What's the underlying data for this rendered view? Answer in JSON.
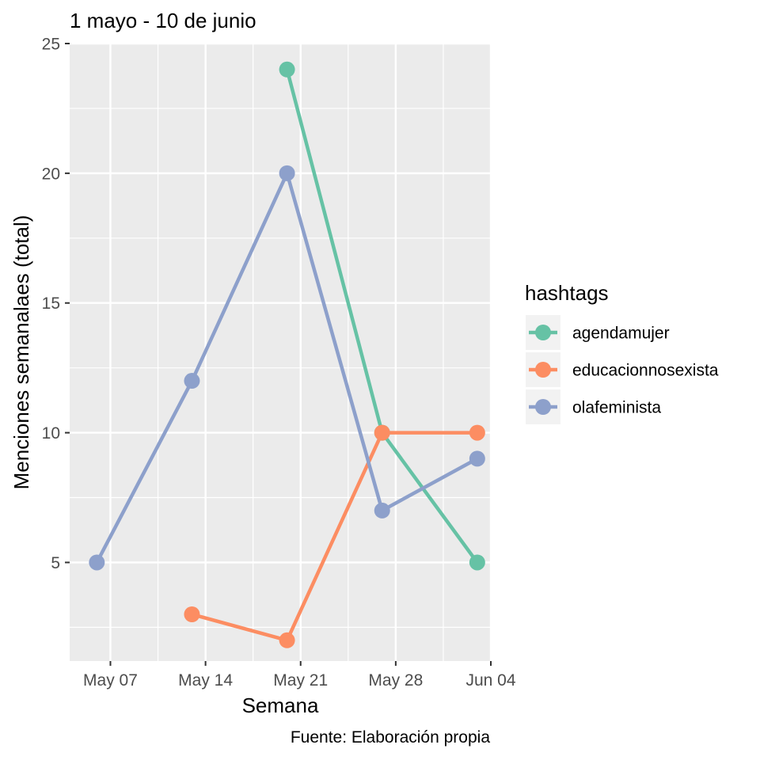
{
  "chart_data": {
    "type": "line",
    "title": "1 mayo - 10 de junio",
    "xlabel": "Semana",
    "ylabel": "Menciones semanalaes (total)",
    "caption": "Fuente: Elaboración propia",
    "x_ticks": [
      "May 07",
      "May 14",
      "May 21",
      "May 28",
      "Jun 04"
    ],
    "y_ticks": [
      "5",
      "10",
      "15",
      "20",
      "25"
    ],
    "xlim": [
      "2018-05-04",
      "2018-06-04"
    ],
    "ylim": [
      1.2,
      25.0
    ],
    "legend": {
      "title": "hashtags",
      "position": "right"
    },
    "series": [
      {
        "name": "agendamujer",
        "color": "#66C2A5",
        "x": [
          "2018-05-20",
          "2018-05-27",
          "2018-06-03"
        ],
        "values": [
          24,
          10,
          5
        ]
      },
      {
        "name": "educacionnosexista",
        "color": "#FC8D62",
        "x": [
          "2018-05-13",
          "2018-05-20",
          "2018-05-27",
          "2018-06-03"
        ],
        "values": [
          3,
          2,
          10,
          10
        ]
      },
      {
        "name": "olafeminista",
        "color": "#8DA0CB",
        "x": [
          "2018-05-06",
          "2018-05-13",
          "2018-05-20",
          "2018-05-27",
          "2018-06-03"
        ],
        "values": [
          5,
          12,
          20,
          7,
          9
        ]
      }
    ],
    "grid": true
  }
}
